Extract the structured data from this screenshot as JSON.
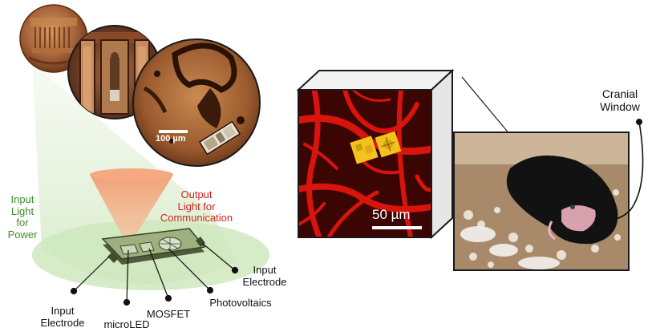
{
  "labels": {
    "input_light": "Input\nLight\nfor\nPower",
    "output_light": "Output\nLight for\nCommunication",
    "input_electrode_left": "Input\nElectrode",
    "microled": "microLED",
    "mosfet": "MOSFET",
    "photovoltaics": "Photovoltaics",
    "input_electrode_right": "Input\nElectrode",
    "cranial_window": "Cranial\nWindow",
    "scale_micro": "100 µm",
    "scale_confocal": "50 µm"
  },
  "colors": {
    "input_light": "#3f8f2a",
    "output_light": "#d2231e",
    "vasculature": "#d8140c",
    "led_yellow": "#f4c21c"
  }
}
